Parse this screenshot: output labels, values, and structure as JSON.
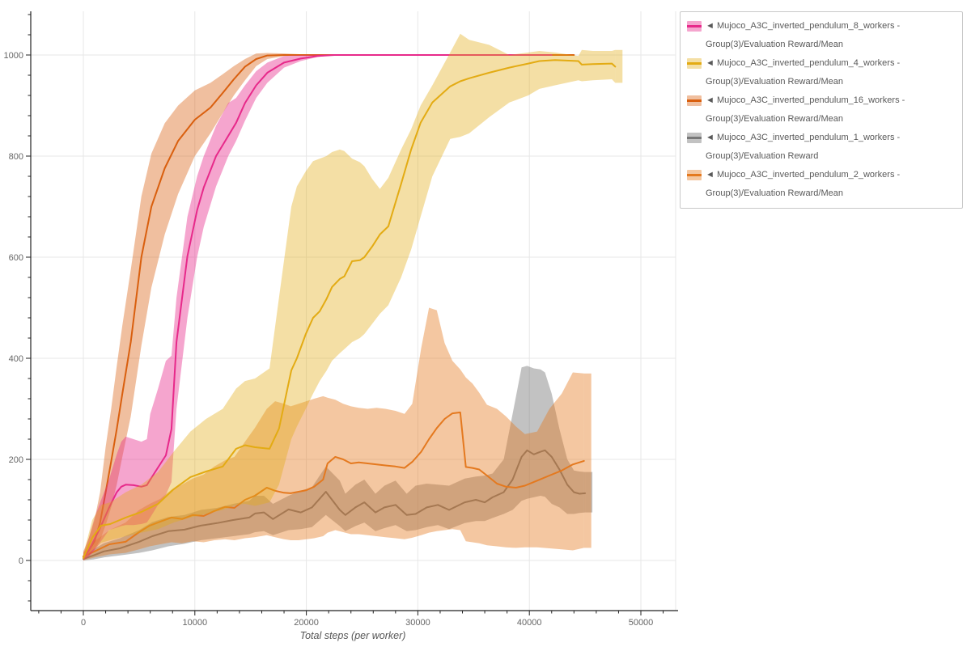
{
  "chart_data": {
    "type": "line",
    "title": "",
    "xlabel": "Total steps (per worker)",
    "ylabel": "",
    "xlim": [
      -4715,
      53120
    ],
    "ylim": [
      -99,
      1086
    ],
    "grid": true,
    "legend_position": "outside-right",
    "xticks": [
      0,
      10000,
      20000,
      30000,
      40000,
      50000
    ],
    "yticks": [
      0,
      200,
      400,
      600,
      800,
      1000
    ],
    "x_minor_step": 2000,
    "x_minor_range": [
      -4000,
      52000
    ],
    "y_minor_step": 40,
    "y_minor_range": [
      -80,
      1080
    ],
    "style": {
      "grid_color": "#e7e7e7",
      "axis_color": "#222222",
      "tick_label_color": "#666666",
      "axis_label_color": "#555555",
      "legend_border_color": "#c9c9c9",
      "background": "#ffffff"
    },
    "draw_order": [
      "w1",
      "w2",
      "w16",
      "w8",
      "w4"
    ],
    "series": [
      {
        "id": "w8",
        "name": "Mujoco_A3C_inverted_pendulum_8_workers - Group(3)/Evaluation Reward/Mean",
        "line_color": "#e7298a",
        "band_color": "rgba(231,41,138,0.42)",
        "end_cap": false,
        "x": [
          0,
          500,
          1000,
          1600,
          2300,
          3000,
          3400,
          3800,
          4500,
          5200,
          5700,
          6000,
          6700,
          7400,
          7900,
          8350,
          9330,
          10200,
          10800,
          11900,
          13000,
          13700,
          14500,
          15500,
          16500,
          18000,
          19500,
          21000,
          22500,
          26000,
          30000,
          34000,
          38000,
          42000
        ],
        "mean": [
          5,
          20,
          42,
          69,
          104,
          135,
          146,
          150,
          149,
          146,
          149,
          160,
          184,
          208,
          260,
          432,
          602,
          693,
          738,
          800,
          840,
          866,
          905,
          940,
          965,
          985,
          993,
          998,
          1000,
          1000,
          1000,
          1000,
          1000,
          1000
        ],
        "lower": [
          0,
          8,
          20,
          38,
          60,
          65,
          68,
          70,
          70,
          72,
          75,
          85,
          110,
          130,
          155,
          300,
          480,
          600,
          660,
          740,
          800,
          830,
          870,
          915,
          945,
          975,
          988,
          996,
          1000,
          1000,
          1000,
          1000,
          1000,
          1000
        ],
        "upper": [
          12,
          45,
          85,
          120,
          160,
          210,
          235,
          245,
          240,
          235,
          240,
          290,
          340,
          395,
          405,
          520,
          680,
          760,
          800,
          860,
          905,
          915,
          940,
          968,
          985,
          998,
          1000,
          1001,
          1001,
          1001,
          1001,
          1001,
          1001,
          1001
        ]
      },
      {
        "id": "w4",
        "name": "Mujoco_A3C_inverted_pendulum_4_workers - Group(3)/Evaluation Reward/Mean",
        "line_color": "#e3ab13",
        "band_color": "rgba(227,171,19,0.38)",
        "end_cap": true,
        "x": [
          0,
          800,
          1600,
          2400,
          3800,
          5200,
          6700,
          8100,
          9600,
          11000,
          12500,
          13700,
          14500,
          15400,
          16700,
          17550,
          18650,
          19150,
          19950,
          20600,
          21200,
          21800,
          22300,
          23000,
          23400,
          24100,
          24800,
          25200,
          25900,
          26600,
          27350,
          28500,
          29400,
          30250,
          31300,
          32900,
          33800,
          34600,
          36400,
          38200,
          39900,
          40900,
          42300,
          44400,
          44700,
          45700,
          47400,
          47700
        ],
        "mean": [
          5,
          45,
          69,
          72,
          85,
          96,
          112,
          141,
          165,
          176,
          186,
          221,
          228,
          224,
          221,
          261,
          376,
          400,
          448,
          480,
          493,
          517,
          541,
          557,
          562,
          592,
          594,
          600,
          621,
          645,
          661,
          745,
          813,
          866,
          906,
          938,
          948,
          954,
          965,
          975,
          983,
          988,
          990,
          988,
          981,
          982,
          983,
          977
        ],
        "lower": [
          0,
          20,
          35,
          40,
          48,
          55,
          62,
          75,
          85,
          92,
          100,
          110,
          112,
          108,
          115,
          150,
          240,
          265,
          300,
          330,
          355,
          375,
          395,
          410,
          418,
          432,
          440,
          448,
          468,
          488,
          505,
          560,
          615,
          680,
          760,
          834,
          838,
          845,
          877,
          906,
          920,
          933,
          940,
          950,
          948,
          950,
          952,
          945
        ],
        "upper": [
          12,
          80,
          110,
          115,
          135,
          150,
          175,
          215,
          255,
          280,
          300,
          340,
          355,
          360,
          380,
          520,
          700,
          740,
          770,
          790,
          795,
          800,
          808,
          813,
          810,
          795,
          788,
          780,
          755,
          735,
          757,
          813,
          853,
          900,
          940,
          1005,
          1042,
          1030,
          1020,
          1000,
          1005,
          1008,
          1005,
          998,
          1010,
          1008,
          1008,
          1010
        ]
      },
      {
        "id": "w16",
        "name": "Mujoco_A3C_inverted_pendulum_16_workers - Group(3)/Evaluation Reward/Mean",
        "line_color": "#d95f0e",
        "band_color": "rgba(217,95,14,0.40)",
        "end_cap": false,
        "x": [
          0,
          500,
          1000,
          1500,
          2000,
          2500,
          3000,
          3500,
          4250,
          5200,
          6100,
          7300,
          8500,
          10000,
          11400,
          12500,
          13500,
          14500,
          15500,
          16500,
          18000,
          20000,
          24000,
          28000,
          32000,
          36000,
          40000,
          43000,
          44000
        ],
        "mean": [
          8,
          20,
          38,
          75,
          135,
          196,
          260,
          330,
          432,
          600,
          700,
          776,
          830,
          872,
          896,
          925,
          952,
          977,
          992,
          999,
          1000,
          1000,
          1000,
          1000,
          1000,
          1000,
          1000,
          1000,
          1000
        ],
        "lower": [
          0,
          10,
          22,
          40,
          70,
          105,
          150,
          205,
          285,
          425,
          540,
          645,
          725,
          800,
          845,
          885,
          920,
          950,
          978,
          992,
          998,
          1000,
          1000,
          1000,
          1000,
          1000,
          1000,
          1000,
          1000
        ],
        "upper": [
          18,
          45,
          80,
          135,
          225,
          300,
          385,
          465,
          575,
          720,
          805,
          865,
          900,
          930,
          945,
          962,
          978,
          992,
          1003,
          1004,
          1003,
          1001,
          1001,
          1001,
          1001,
          1001,
          1001,
          1001,
          1001
        ]
      },
      {
        "id": "w1",
        "name": "Mujoco_A3C_inverted_pendulum_1_workers - Group(3)/Evaluation Reward",
        "line_color": "#777777",
        "band_color": "rgba(120,120,120,0.45)",
        "end_cap": true,
        "x": [
          0,
          900,
          1830,
          3280,
          5000,
          6180,
          7630,
          9080,
          10530,
          11980,
          13430,
          14880,
          15400,
          16200,
          17000,
          18400,
          19500,
          20500,
          21750,
          23000,
          23500,
          24400,
          25200,
          26200,
          27000,
          28000,
          29000,
          29800,
          30800,
          31800,
          32800,
          34200,
          35200,
          36000,
          36700,
          37700,
          38500,
          39300,
          39800,
          40400,
          41000,
          41400,
          42000,
          42700,
          43400,
          44000,
          44500,
          45000
        ],
        "mean": [
          3,
          10,
          18,
          24,
          37,
          48,
          58,
          61,
          69,
          74,
          80,
          85,
          93,
          95,
          82,
          101,
          95,
          105,
          136,
          100,
          90,
          105,
          115,
          95,
          105,
          110,
          90,
          92,
          105,
          110,
          100,
          115,
          120,
          115,
          125,
          135,
          160,
          205,
          218,
          210,
          215,
          218,
          205,
          180,
          150,
          135,
          132,
          133
        ],
        "lower": [
          0,
          2,
          6,
          10,
          15,
          20,
          28,
          33,
          40,
          44,
          48,
          52,
          56,
          58,
          50,
          60,
          62,
          66,
          90,
          68,
          58,
          68,
          75,
          58,
          64,
          70,
          58,
          60,
          66,
          70,
          62,
          74,
          78,
          78,
          84,
          92,
          100,
          118,
          122,
          125,
          128,
          126,
          112,
          105,
          92,
          92,
          94,
          95
        ],
        "upper": [
          8,
          22,
          34,
          44,
          60,
          76,
          86,
          90,
          100,
          104,
          112,
          118,
          128,
          128,
          112,
          128,
          138,
          145,
          186,
          158,
          132,
          150,
          160,
          132,
          148,
          158,
          132,
          148,
          152,
          150,
          148,
          162,
          166,
          168,
          172,
          200,
          290,
          382,
          385,
          380,
          378,
          372,
          330,
          260,
          200,
          178,
          176,
          175
        ]
      },
      {
        "id": "w2",
        "name": "Mujoco_A3C_inverted_pendulum_2_workers - Group(3)/Evaluation Reward/Mean",
        "line_color": "#e4791f",
        "band_color": "rgba(228,121,31,0.42)",
        "end_cap": true,
        "x": [
          0,
          1000,
          2340,
          3790,
          5000,
          5950,
          6905,
          7900,
          8850,
          9805,
          10790,
          11750,
          12700,
          13550,
          14500,
          15380,
          16450,
          17200,
          18000,
          18600,
          19300,
          20000,
          20700,
          21500,
          21900,
          22600,
          23300,
          24000,
          24700,
          25500,
          26300,
          27100,
          28000,
          28800,
          29500,
          30300,
          31000,
          31700,
          32400,
          33100,
          33800,
          34300,
          34900,
          35500,
          36200,
          37100,
          37900,
          38800,
          39600,
          40700,
          41800,
          42900,
          43900,
          44900
        ],
        "mean": [
          8,
          18,
          32,
          37,
          56,
          69,
          77,
          85,
          82,
          90,
          88,
          98,
          106,
          104,
          120,
          128,
          144,
          138,
          134,
          133,
          136,
          139,
          146,
          160,
          192,
          205,
          200,
          192,
          194,
          192,
          190,
          188,
          186,
          183,
          195,
          215,
          240,
          262,
          280,
          291,
          293,
          185,
          183,
          180,
          168,
          152,
          146,
          144,
          148,
          158,
          168,
          178,
          190,
          197
        ],
        "lower": [
          0,
          6,
          12,
          15,
          22,
          28,
          32,
          36,
          34,
          38,
          36,
          40,
          42,
          40,
          44,
          46,
          50,
          46,
          42,
          40,
          40,
          42,
          44,
          48,
          55,
          60,
          56,
          52,
          52,
          50,
          48,
          46,
          44,
          42,
          45,
          50,
          55,
          58,
          60,
          62,
          60,
          38,
          36,
          34,
          30,
          28,
          26,
          25,
          26,
          26,
          24,
          22,
          20,
          25
        ],
        "upper": [
          16,
          38,
          60,
          75,
          100,
          112,
          122,
          140,
          150,
          162,
          170,
          186,
          198,
          205,
          235,
          262,
          300,
          315,
          310,
          305,
          310,
          315,
          320,
          325,
          322,
          318,
          310,
          305,
          302,
          300,
          302,
          300,
          296,
          290,
          310,
          420,
          500,
          495,
          430,
          395,
          378,
          362,
          350,
          332,
          308,
          300,
          285,
          265,
          250,
          255,
          300,
          330,
          372,
          370
        ]
      }
    ]
  },
  "legend": {
    "items": [
      {
        "series_id": "w8",
        "label": "◄ Mujoco_A3C_inverted_pendulum_8_workers - Group(3)/Evaluation Reward/Mean"
      },
      {
        "series_id": "w4",
        "label": "◄ Mujoco_A3C_inverted_pendulum_4_workers - Group(3)/Evaluation Reward/Mean"
      },
      {
        "series_id": "w16",
        "label": "◄ Mujoco_A3C_inverted_pendulum_16_workers - Group(3)/Evaluation Reward/Mean"
      },
      {
        "series_id": "w1",
        "label": "◄ Mujoco_A3C_inverted_pendulum_1_workers - Group(3)/Evaluation Reward"
      },
      {
        "series_id": "w2",
        "label": "◄ Mujoco_A3C_inverted_pendulum_2_workers - Group(3)/Evaluation Reward/Mean"
      }
    ]
  },
  "axis_text": {
    "xlabel": "Total steps (per worker)"
  }
}
